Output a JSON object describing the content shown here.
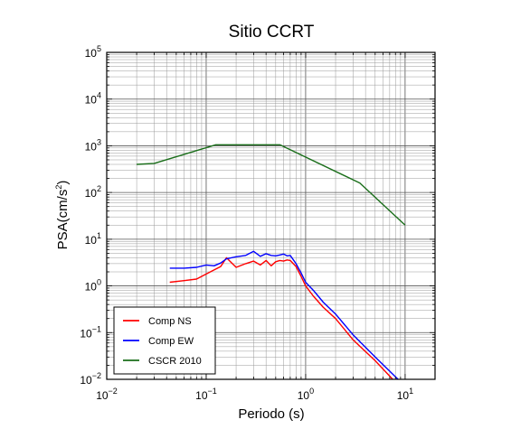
{
  "chart_data": {
    "type": "line",
    "title": "Sitio CCRT",
    "xlabel": "Periodo (s)",
    "ylabel": "PSA(cm/s2)",
    "ylabel_parts": {
      "base": "PSA(cm/s",
      "sup": "2",
      "close": ")"
    },
    "x_scale": "log",
    "y_scale": "log",
    "xlim": [
      0.01,
      20
    ],
    "ylim": [
      0.01,
      100000
    ],
    "grid": true,
    "legend_position": "bottom-left",
    "x_ticks": [
      {
        "value": 0.01,
        "base": "10",
        "exp": "−2"
      },
      {
        "value": 0.1,
        "base": "10",
        "exp": "−1"
      },
      {
        "value": 1,
        "base": "10",
        "exp": "0"
      },
      {
        "value": 10,
        "base": "10",
        "exp": "1"
      }
    ],
    "y_ticks": [
      {
        "value": 0.01,
        "base": "10",
        "exp": "−2"
      },
      {
        "value": 0.1,
        "base": "10",
        "exp": "−1"
      },
      {
        "value": 1,
        "base": "10",
        "exp": "0"
      },
      {
        "value": 10,
        "base": "10",
        "exp": "1"
      },
      {
        "value": 100,
        "base": "10",
        "exp": "2"
      },
      {
        "value": 1000,
        "base": "10",
        "exp": "3"
      },
      {
        "value": 10000,
        "base": "10",
        "exp": "4"
      },
      {
        "value": 100000,
        "base": "10",
        "exp": "5"
      }
    ],
    "series": [
      {
        "name": "Comp NS",
        "color": "#ff0000",
        "x": [
          0.043,
          0.06,
          0.08,
          0.1,
          0.12,
          0.14,
          0.16,
          0.2,
          0.25,
          0.3,
          0.35,
          0.4,
          0.45,
          0.5,
          0.55,
          0.6,
          0.65,
          0.7,
          0.8,
          0.9,
          1.0,
          1.2,
          1.5,
          2.0,
          3.0,
          5.0,
          7.5
        ],
        "y": [
          1.2,
          1.3,
          1.4,
          1.8,
          2.2,
          2.6,
          4.0,
          2.5,
          3.0,
          3.4,
          2.8,
          3.5,
          2.7,
          3.3,
          3.5,
          3.4,
          3.6,
          3.5,
          2.6,
          1.6,
          1.0,
          0.6,
          0.35,
          0.2,
          0.07,
          0.025,
          0.01
        ]
      },
      {
        "name": "Comp EW",
        "color": "#0000ff",
        "x": [
          0.043,
          0.06,
          0.08,
          0.1,
          0.12,
          0.14,
          0.16,
          0.2,
          0.25,
          0.3,
          0.35,
          0.4,
          0.45,
          0.5,
          0.55,
          0.6,
          0.65,
          0.7,
          0.8,
          0.9,
          1.0,
          1.2,
          1.5,
          2.0,
          3.0,
          5.0,
          8.5
        ],
        "y": [
          2.4,
          2.4,
          2.5,
          2.8,
          2.7,
          3.1,
          3.8,
          4.2,
          4.5,
          5.5,
          4.3,
          4.9,
          4.5,
          4.4,
          4.6,
          4.8,
          4.4,
          4.5,
          3.0,
          1.9,
          1.2,
          0.8,
          0.45,
          0.25,
          0.09,
          0.03,
          0.01
        ]
      },
      {
        "name": "CSCR 2010",
        "color": "#1a6e1a",
        "x": [
          0.02,
          0.03,
          0.125,
          0.55,
          3.5,
          10.0
        ],
        "y": [
          400,
          420,
          1050,
          1050,
          160,
          20
        ]
      }
    ]
  }
}
